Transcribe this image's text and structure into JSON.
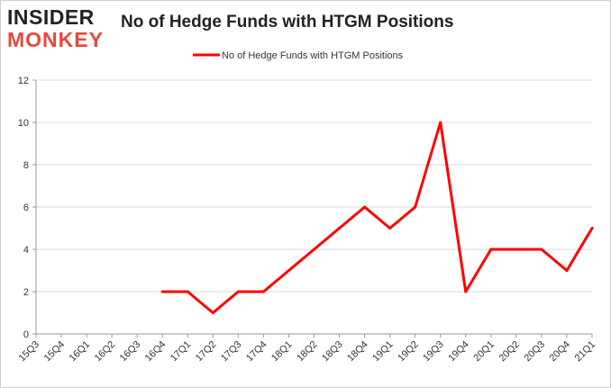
{
  "logo": {
    "line1": "INSIDER",
    "line2": "MONKEY"
  },
  "chart_data": {
    "type": "line",
    "title": "No of Hedge Funds with HTGM Positions",
    "categories": [
      "15Q3",
      "15Q4",
      "16Q1",
      "16Q2",
      "16Q3",
      "16Q4",
      "17Q1",
      "17Q2",
      "17Q3",
      "17Q4",
      "18Q1",
      "18Q2",
      "18Q3",
      "18Q4",
      "19Q1",
      "19Q2",
      "19Q3",
      "19Q4",
      "20Q1",
      "20Q2",
      "20Q3",
      "20Q4",
      "21Q1"
    ],
    "series": [
      {
        "name": "No of Hedge Funds with HTGM Positions",
        "color": "#ff0000",
        "values": [
          null,
          null,
          null,
          null,
          null,
          2,
          2,
          1,
          2,
          2,
          3,
          4,
          5,
          6,
          5,
          6,
          10,
          2,
          4,
          4,
          4,
          3,
          5
        ]
      }
    ],
    "ylim": [
      0,
      12
    ],
    "yticks": [
      0,
      2,
      4,
      6,
      8,
      10,
      12
    ],
    "grid": true,
    "legend_position": "top-center",
    "xlabel": "",
    "ylabel": ""
  }
}
